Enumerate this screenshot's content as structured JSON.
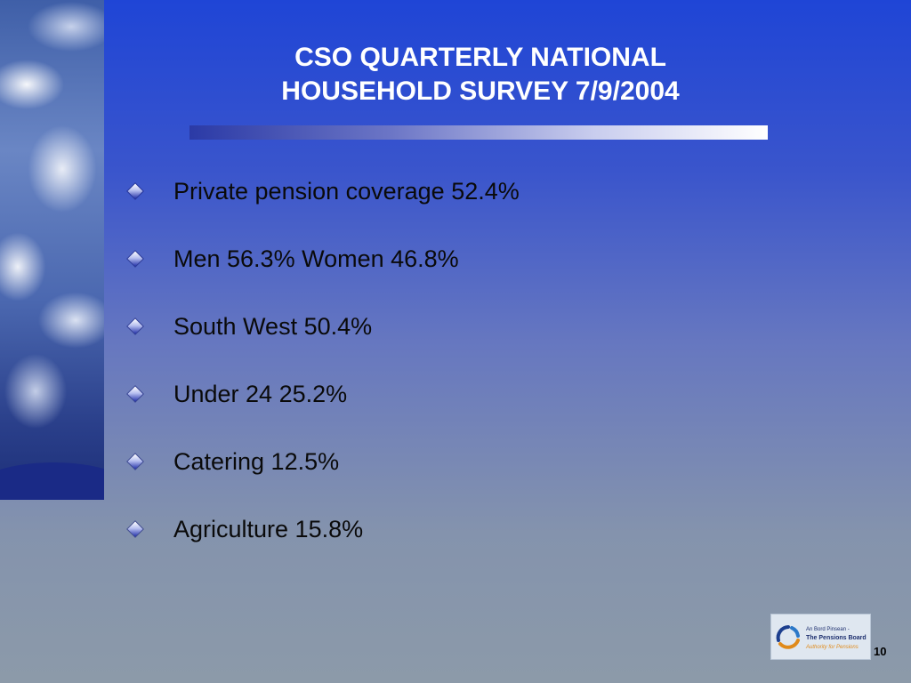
{
  "title": {
    "line1": "CSO QUARTERLY NATIONAL",
    "line2": "HOUSEHOLD SURVEY 7/9/2004"
  },
  "bullets": [
    "Private pension coverage 52.4%",
    "Men 56.3% Women 46.8%",
    "South West 50.4%",
    "Under 24 25.2%",
    "Catering 12.5%",
    "Agriculture 15.8%"
  ],
  "logo": {
    "line1": "An Bord Pinsean -",
    "line2": "The Pensions Board",
    "line3": "Authority for Pensions"
  },
  "page_number": "10",
  "icons": {
    "bullet": "diamond-bullet-icon",
    "logo": "pensions-board-logo-icon"
  },
  "colors": {
    "title_text": "#ffffff",
    "body_text": "#0a0a0a",
    "background_top": "#1f45d6",
    "background_bottom": "#8c9aa9"
  }
}
